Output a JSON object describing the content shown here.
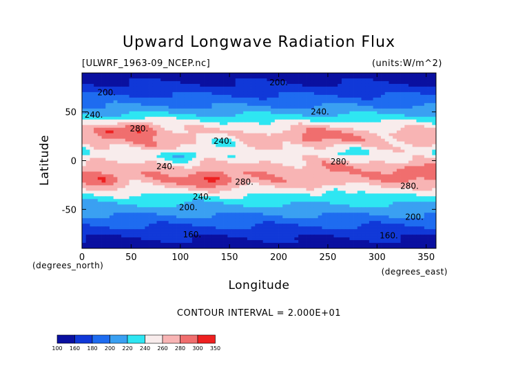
{
  "chart_data": {
    "type": "heatmap",
    "title": "Upward Longwave Radiation Flux",
    "source_label": "[ULWRF_1963-09_NCEP.nc]",
    "units_label": "(units:W/m^2)",
    "xlabel": "Longitude",
    "ylabel": "Latitude",
    "x_unit_label": "(degrees_east)",
    "y_unit_label": "(degrees_north)",
    "xlim": [
      0,
      360
    ],
    "ylim": [
      -90,
      90
    ],
    "x_ticks": [
      0,
      50,
      100,
      150,
      200,
      250,
      300,
      350
    ],
    "y_ticks": [
      -50,
      0,
      50
    ],
    "contour_interval_text": "CONTOUR INTERVAL = 2.000E+01",
    "levels": [
      100,
      160,
      180,
      200,
      220,
      240,
      260,
      280,
      300,
      350
    ],
    "level_colors": [
      "#0a10a0",
      "#1038d8",
      "#1e6cf0",
      "#3aa0f2",
      "#2ee6f2",
      "#f8ecec",
      "#f8b4b4",
      "#f06e6e",
      "#ee2020"
    ],
    "contour_labels": [
      {
        "text": "200.",
        "lon": 25,
        "lat": 70
      },
      {
        "text": "200.",
        "lon": 200,
        "lat": 80
      },
      {
        "text": "240.",
        "lon": 12,
        "lat": 47
      },
      {
        "text": "240.",
        "lon": 242,
        "lat": 50
      },
      {
        "text": "280.",
        "lon": 58,
        "lat": 33
      },
      {
        "text": "240.",
        "lon": 143,
        "lat": 20
      },
      {
        "text": "240.",
        "lon": 85,
        "lat": -6
      },
      {
        "text": "280.",
        "lon": 262,
        "lat": -1
      },
      {
        "text": "280.",
        "lon": 165,
        "lat": -22
      },
      {
        "text": "280.",
        "lon": 333,
        "lat": -26
      },
      {
        "text": "240.",
        "lon": 122,
        "lat": -37
      },
      {
        "text": "200.",
        "lon": 108,
        "lat": -48
      },
      {
        "text": "200.",
        "lon": 338,
        "lat": -58
      },
      {
        "text": "160.",
        "lon": 112,
        "lat": -76
      },
      {
        "text": "160.",
        "lon": 312,
        "lat": -77
      }
    ]
  }
}
